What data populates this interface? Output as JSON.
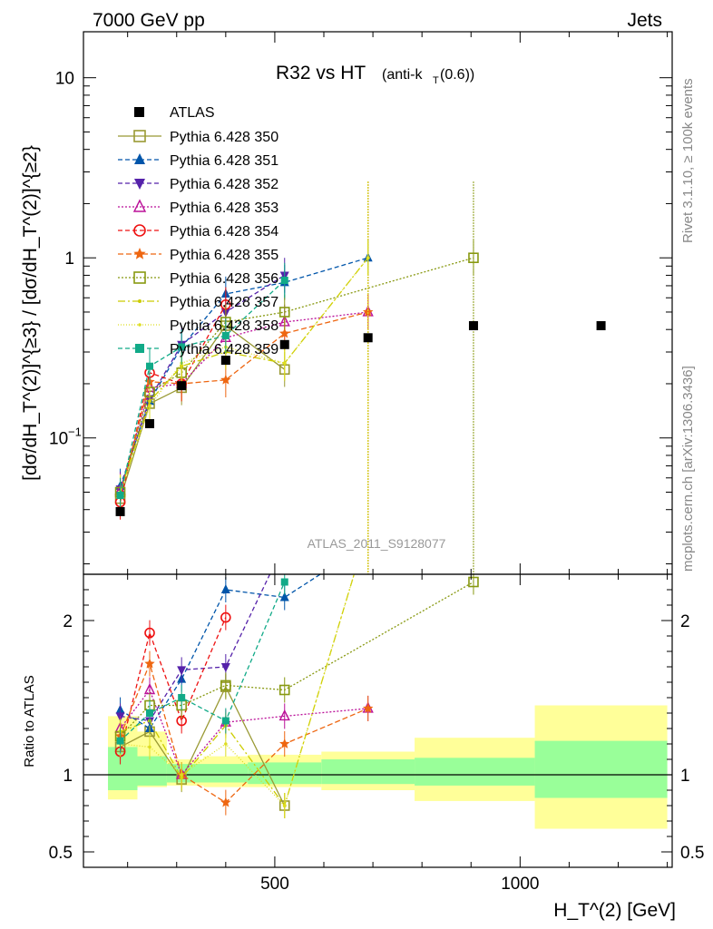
{
  "header": {
    "left": "7000 GeV pp",
    "right": "Jets"
  },
  "title": {
    "main": "R32 vs HT",
    "sub": "(anti-k",
    "sub_sub": "T",
    "sub_end": "(0.6))"
  },
  "side_labels": {
    "rivet": "Rivet 3.1.10, ≥ 100k events",
    "mcplots": "mcplots.cern.ch [arXiv:1306.3436]"
  },
  "watermark": "ATLAS_2011_S9128077",
  "ylabel_main": "[dσ/dH_T^(2)]^{≥3} / [dσ/dH_T^(2)]^{≥2}",
  "ylabel_ratio": "Ratio to ATLAS",
  "xlabel": "H_T^(2) [GeV]",
  "colors": {
    "atlas": "#000000",
    "p350": "#999933",
    "p351": "#0055aa",
    "p352": "#5522aa",
    "p353": "#bb1199",
    "p354": "#ee1111",
    "p355": "#ee6611",
    "p356": "#889911",
    "p357": "#cccc00",
    "p358": "#dddd22",
    "p359": "#11aa88",
    "band_inner": "#99ff99",
    "band_outer": "#ffff99"
  },
  "chart_data": {
    "type": "scatter",
    "x_scale": "linear",
    "y_scale": "log",
    "xlim": [
      110,
      1310
    ],
    "ylim": [
      0.0175,
      18
    ],
    "ratio_ylim": [
      0.4,
      2.3
    ],
    "x_ticks": [
      500,
      1000
    ],
    "y_ticks": [
      {
        "value": 0.1,
        "label": "10^-1"
      },
      {
        "value": 1,
        "label": "1"
      },
      {
        "value": 10,
        "label": "10"
      }
    ],
    "ratio_ticks": [
      0.5,
      1,
      2
    ],
    "grid": false,
    "legend_position": "top-left",
    "atlas": {
      "name": "ATLAS",
      "x": [
        185,
        245,
        310,
        400,
        520,
        690,
        905,
        1165
      ],
      "y": [
        0.039,
        0.12,
        0.195,
        0.27,
        0.33,
        0.36,
        0.42,
        0.42
      ],
      "band_xedges": [
        160,
        220,
        280,
        355,
        445,
        595,
        785,
        1030,
        1300
      ],
      "band_inner": [
        [
          0.9,
          1.18
        ],
        [
          0.93,
          1.12
        ],
        [
          0.95,
          1.07
        ],
        [
          0.95,
          1.07
        ],
        [
          0.94,
          1.08
        ],
        [
          0.94,
          1.1
        ],
        [
          0.93,
          1.11
        ],
        [
          0.85,
          1.22
        ]
      ],
      "band_outer": [
        [
          0.84,
          1.38
        ],
        [
          0.92,
          1.28
        ],
        [
          0.93,
          1.1
        ],
        [
          0.92,
          1.12
        ],
        [
          0.92,
          1.13
        ],
        [
          0.9,
          1.15
        ],
        [
          0.83,
          1.24
        ],
        [
          0.65,
          1.45
        ]
      ]
    },
    "series": [
      {
        "name": "Pythia 6.428 350",
        "marker": "square-open",
        "dash": "",
        "x": [
          185,
          245,
          310,
          400,
          520
        ],
        "y": [
          0.046,
          0.155,
          0.19,
          0.42,
          0.24
        ]
      },
      {
        "name": "Pythia 6.428 351",
        "marker": "triangle-up",
        "dash": "5,3",
        "x": [
          185,
          245,
          310,
          400,
          520,
          690
        ],
        "y": [
          0.054,
          0.16,
          0.32,
          0.63,
          0.73,
          1.0
        ]
      },
      {
        "name": "Pythia 6.428 352",
        "marker": "triangle-down",
        "dash": "5,3",
        "x": [
          185,
          245,
          310,
          400,
          520
        ],
        "y": [
          0.052,
          0.165,
          0.33,
          0.5,
          0.8
        ]
      },
      {
        "name": "Pythia 6.428 353",
        "marker": "triangle-open",
        "dash": "2,2",
        "x": [
          185,
          245,
          310,
          400,
          520,
          690
        ],
        "y": [
          0.051,
          0.19,
          0.2,
          0.36,
          0.44,
          0.5
        ]
      },
      {
        "name": "Pythia 6.428 354",
        "marker": "circle-open",
        "dash": "5,3",
        "x": [
          185,
          245,
          310,
          400
        ],
        "y": [
          0.044,
          0.23,
          0.2,
          0.55
        ]
      },
      {
        "name": "Pythia 6.428 355",
        "marker": "star",
        "dash": "6,3",
        "x": [
          185,
          245,
          310,
          400,
          520,
          690
        ],
        "y": [
          0.048,
          0.205,
          0.2,
          0.21,
          0.38,
          0.5
        ]
      },
      {
        "name": "Pythia 6.428 356",
        "marker": "square-open",
        "dash": "2,2",
        "x": [
          185,
          245,
          310,
          400,
          520,
          905
        ],
        "y": [
          0.05,
          0.18,
          0.23,
          0.44,
          0.5,
          1.0
        ]
      },
      {
        "name": "Pythia 6.428 357",
        "marker": "dot-dash",
        "dash": "8,3,2,3",
        "x": [
          185,
          245,
          310,
          400,
          520,
          690
        ],
        "y": [
          0.05,
          0.16,
          0.25,
          0.3,
          0.26,
          1.0
        ]
      },
      {
        "name": "Pythia 6.428 358",
        "marker": "dot",
        "dash": "1,2",
        "x": [
          185,
          245,
          310,
          400,
          520,
          690
        ],
        "y": [
          0.05,
          0.15,
          0.26,
          0.32,
          0.26,
          1.0
        ]
      },
      {
        "name": "Pythia 6.428 359",
        "marker": "square-filled",
        "dash": "5,3",
        "x": [
          185,
          245,
          310,
          400,
          520
        ],
        "y": [
          0.048,
          0.25,
          0.32,
          0.37,
          0.75
        ]
      }
    ],
    "ratios": [
      {
        "name": "Pythia 6.428 350",
        "y": [
          1.18,
          1.28,
          0.97,
          1.57,
          0.8
        ]
      },
      {
        "name": "Pythia 6.428 351",
        "y": [
          1.42,
          1.3,
          1.62,
          2.2,
          2.15,
          2.5
        ]
      },
      {
        "name": "Pythia 6.428 352",
        "y": [
          1.38,
          1.35,
          1.68,
          1.7,
          2.5
        ]
      },
      {
        "name": "Pythia 6.428 353",
        "y": [
          1.3,
          1.55,
          1.0,
          1.34,
          1.38,
          1.43
        ]
      },
      {
        "name": "Pythia 6.428 354",
        "y": [
          1.15,
          1.92,
          1.35,
          2.02
        ]
      },
      {
        "name": "Pythia 6.428 355",
        "y": [
          1.25,
          1.72,
          1.0,
          0.82,
          1.2,
          1.43
        ]
      },
      {
        "name": "Pythia 6.428 356",
        "y": [
          1.25,
          1.45,
          1.45,
          1.58,
          1.55,
          2.25
        ]
      },
      {
        "name": "Pythia 6.428 357",
        "y": [
          1.28,
          1.35,
          0.98,
          1.32,
          0.8,
          2.6
        ]
      },
      {
        "name": "Pythia 6.428 358",
        "y": [
          1.2,
          1.18,
          1.0,
          1.2,
          0.8,
          2.6
        ]
      },
      {
        "name": "Pythia 6.428 359",
        "y": [
          1.22,
          1.4,
          1.5,
          1.35,
          2.25
        ]
      }
    ]
  }
}
